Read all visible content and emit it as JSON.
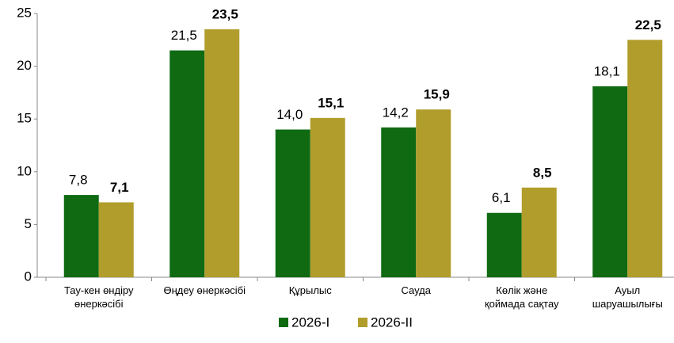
{
  "chart_data": {
    "type": "bar",
    "categories": [
      "Тау-кен өндіру\nөнеркәсібі",
      "Өңдеу өнеркәсібі",
      "Құрылыс",
      "Сауда",
      "Көлік және\nқоймада сақтау",
      "Ауыл\nшаруашылығы"
    ],
    "series": [
      {
        "name": "2026-I",
        "color": "#0f6a12",
        "values": [
          7.8,
          21.5,
          14.0,
          14.2,
          6.1,
          18.1
        ],
        "value_labels": [
          "7,8",
          "21,5",
          "14,0",
          "14,2",
          "6,1",
          "18,1"
        ]
      },
      {
        "name": "2026-II",
        "color": "#b19d2b",
        "values": [
          7.1,
          23.5,
          15.1,
          15.9,
          8.5,
          22.5
        ],
        "value_labels": [
          "7,1",
          "23,5",
          "15,1",
          "15,9",
          "8,5",
          "22,5"
        ]
      }
    ],
    "ylim": [
      0,
      25
    ],
    "yticks": [
      0,
      5,
      10,
      15,
      20,
      25
    ],
    "legend": "bottom"
  }
}
